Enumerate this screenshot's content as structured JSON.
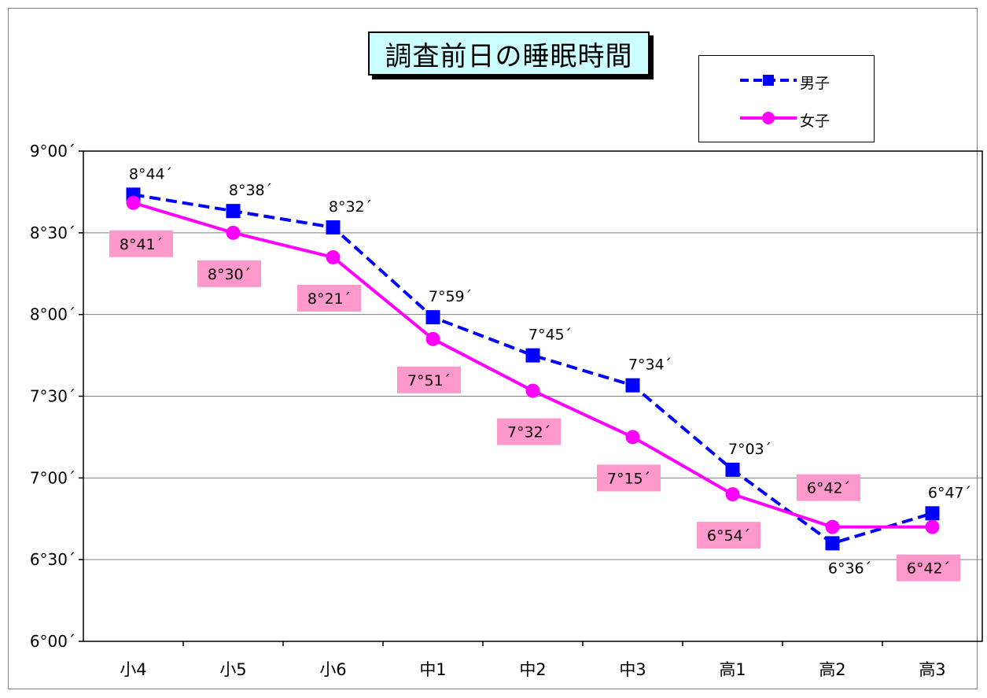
{
  "chart_data": {
    "type": "line",
    "title": "調査前日の睡眠時間",
    "categories": [
      "小4",
      "小5",
      "小6",
      "中1",
      "中2",
      "中3",
      "高1",
      "高2",
      "高3"
    ],
    "y_unit": "minutes",
    "ylim": [
      360,
      540
    ],
    "y_ticks": [
      360,
      390,
      420,
      450,
      480,
      510,
      540
    ],
    "y_tick_labels": [
      "6°00´",
      "6°30´",
      "7°00´",
      "7°30´",
      "8°00´",
      "8°30´",
      "9°00´"
    ],
    "grid": "horizontal",
    "legend_position": "top-right",
    "series": [
      {
        "name": "男子",
        "color": "#0000ff",
        "line_style": "dashed",
        "marker": "square",
        "values": [
          524,
          518,
          512,
          479,
          465,
          454,
          423,
          396,
          407
        ],
        "labels": [
          "8°44´",
          "8°38´",
          "8°32´",
          "7°59´",
          "7°45´",
          "7°34´",
          "7°03´",
          "6°36´",
          "6°47´"
        ]
      },
      {
        "name": "女子",
        "color": "#ff00ff",
        "line_style": "solid",
        "marker": "circle",
        "label_background": "#ff99cc",
        "values": [
          521,
          510,
          501,
          471,
          452,
          435,
          414,
          402,
          402
        ],
        "labels": [
          "8°41´",
          "8°30´",
          "8°21´",
          "7°51´",
          "7°32´",
          "7°15´",
          "6°54´",
          "6°42´",
          "6°42´"
        ]
      }
    ]
  }
}
